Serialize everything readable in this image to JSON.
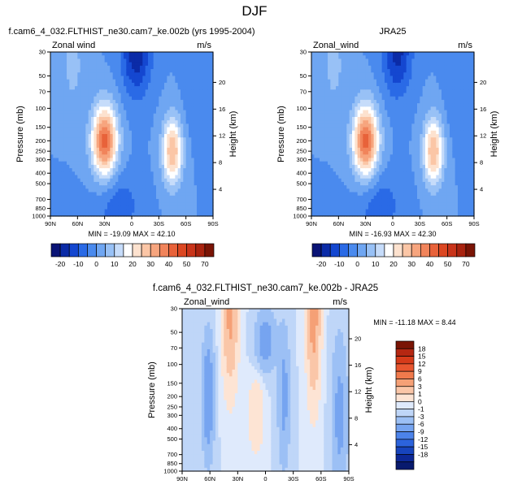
{
  "page_title": "DJF",
  "colors": {
    "neg_strong": "#0a1f9e",
    "neg_mid": "#2f6fe0",
    "neg_light": "#a9c8f5",
    "near_zero": "#f2f6ff",
    "pos_light": "#fbd9c3",
    "pos_mid": "#f08a60",
    "pos_strong": "#e24a1f",
    "missing": "#ffffff"
  },
  "chart_data": [
    {
      "type": "heatmap",
      "title": "f.cam6_4_032.FLTHIST_ne30.cam7_ke.002b (yrs 1995-2004)",
      "left_label": "Zonal wind",
      "right_label": "m/s",
      "xlabel": "",
      "ylabel": "Pressure (mb)",
      "ylabel_right": "Height (km)",
      "x_ticks": [
        "90N",
        "60N",
        "30N",
        "0",
        "30S",
        "60S",
        "90S"
      ],
      "y_ticks": [
        "30",
        "50",
        "70",
        "100",
        "150",
        "200",
        "250",
        "300",
        "400",
        "500",
        "700",
        "850",
        "1000"
      ],
      "y_ticks_right": [
        "20",
        "16",
        "12",
        "8",
        "4"
      ],
      "stats": "MIN = -19.09   MAX = 42.10",
      "field": {
        "jets": [
          {
            "lat": 30,
            "p": 200,
            "max": 42
          },
          {
            "lat": -45,
            "p": 250,
            "max": 30
          }
        ],
        "easterly_min": {
          "lat": -5,
          "p": 30,
          "min": -19
        }
      }
    },
    {
      "type": "heatmap",
      "title": "JRA25",
      "left_label": "Zonal_wind",
      "right_label": "m/s",
      "xlabel": "",
      "ylabel": "Pressure (mb)",
      "ylabel_right": "Height (km)",
      "x_ticks": [
        "90N",
        "60N",
        "30N",
        "0",
        "30S",
        "60S",
        "90S"
      ],
      "y_ticks": [
        "30",
        "50",
        "70",
        "100",
        "150",
        "200",
        "250",
        "300",
        "400",
        "500",
        "700",
        "850",
        "1000"
      ],
      "y_ticks_right": [
        "20",
        "16",
        "12",
        "8",
        "4"
      ],
      "stats": "MIN = -16.93   MAX = 42.30",
      "field": {
        "jets": [
          {
            "lat": 30,
            "p": 200,
            "max": 42
          },
          {
            "lat": -45,
            "p": 250,
            "max": 30
          }
        ],
        "easterly_min": {
          "lat": -5,
          "p": 30,
          "min": -17
        }
      }
    },
    {
      "type": "heatmap",
      "title": "f.cam6_4_032.FLTHIST_ne30.cam7_ke.002b - JRA25",
      "left_label": "Zonal_wind",
      "right_label": "m/s",
      "xlabel": "",
      "ylabel": "Pressure (mb)",
      "ylabel_right": "Height (km)",
      "x_ticks": [
        "90N",
        "60N",
        "30N",
        "0",
        "30S",
        "60S",
        "90S"
      ],
      "y_ticks": [
        "30",
        "50",
        "70",
        "100",
        "150",
        "200",
        "250",
        "300",
        "400",
        "500",
        "700",
        "850",
        "1000"
      ],
      "y_ticks_right": [
        "20",
        "16",
        "12",
        "8",
        "4"
      ],
      "stats": "MIN = -11.18  MAX =   8.44",
      "field": {
        "bands": [
          {
            "lat": 38,
            "p": 30,
            "val": 8
          },
          {
            "lat": -52,
            "p": 30,
            "val": 8
          }
        ]
      }
    }
  ],
  "colorbar_top": {
    "labels": [
      "-20",
      "-10",
      "0",
      "10",
      "20",
      "30",
      "40",
      "50",
      "70"
    ],
    "colors": [
      "#0a1476",
      "#0b2ba7",
      "#1447d0",
      "#2a6ae6",
      "#4a8aee",
      "#6fa6f2",
      "#98c1f6",
      "#c6dcfa",
      "#ffffff",
      "#fde2cf",
      "#fbc6a6",
      "#f7a57e",
      "#f1845b",
      "#e8623a",
      "#dc4722",
      "#c9341a",
      "#a9230f",
      "#7a1405"
    ]
  },
  "colorbar_diff": {
    "labels": [
      "18",
      "15",
      "12",
      "9",
      "6",
      "3",
      "1",
      "0",
      "-1",
      "-3",
      "-6",
      "-9",
      "-12",
      "-15",
      "-18"
    ],
    "colors": [
      "#7a1405",
      "#b52712",
      "#d63b1a",
      "#e8562f",
      "#f07a4c",
      "#f5a076",
      "#fac6a8",
      "#fde4d4",
      "#dfeafc",
      "#bfd6f8",
      "#9cc0f5",
      "#76a4f0",
      "#4c83ea",
      "#2c63dc",
      "#1744bd",
      "#0d2896",
      "#081a6e"
    ]
  }
}
